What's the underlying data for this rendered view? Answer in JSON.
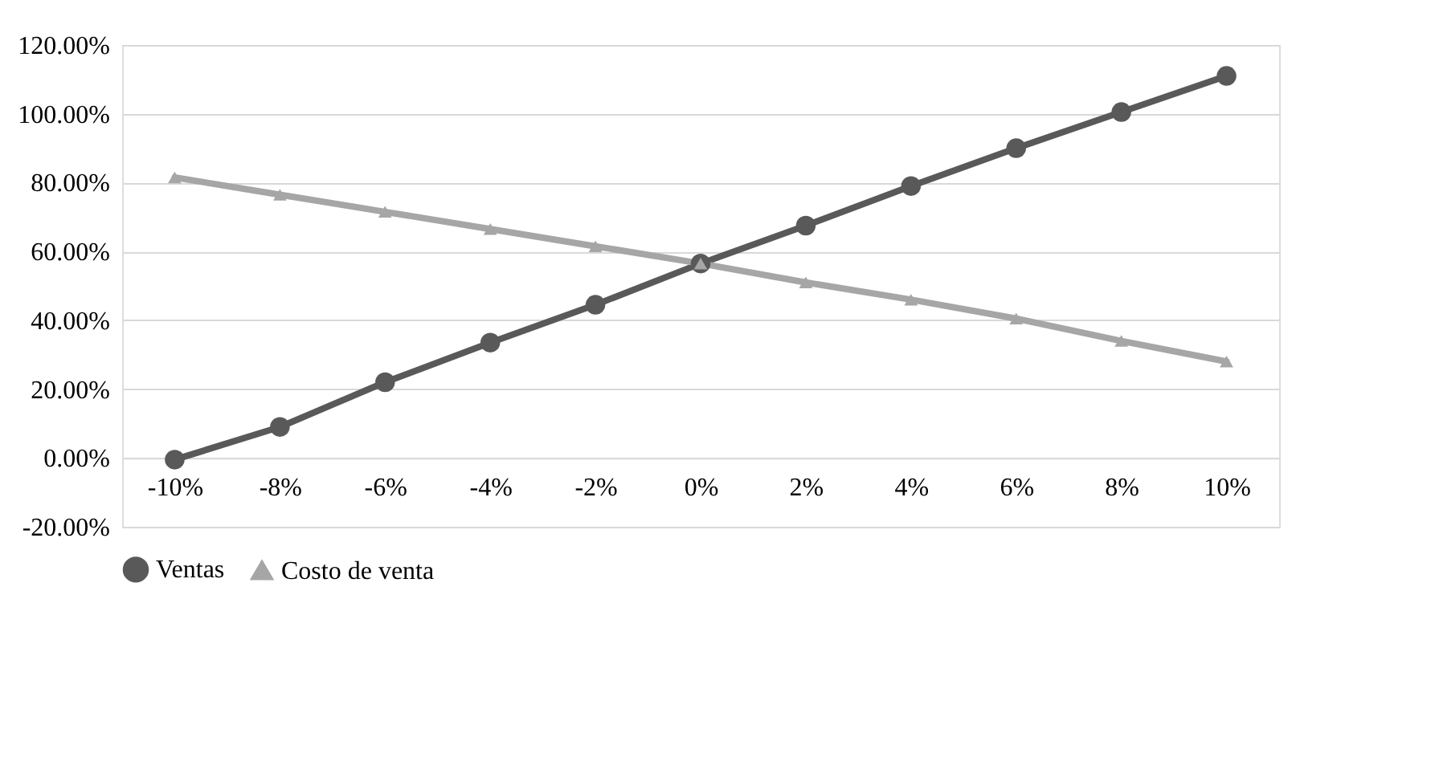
{
  "chart_data": {
    "type": "line",
    "categories": [
      "-10%",
      "-8%",
      "-6%",
      "-4%",
      "-2%",
      "0%",
      "2%",
      "4%",
      "6%",
      "8%",
      "10%"
    ],
    "series": [
      {
        "name": "Ventas",
        "color": "#595959",
        "marker": "circle",
        "values": [
          -0.5,
          9,
          22,
          33.5,
          44.5,
          56.5,
          67.5,
          79,
          90,
          100.5,
          111
        ]
      },
      {
        "name": "Costo de venta",
        "color": "#a6a6a6",
        "marker": "triangle",
        "values": [
          81.5,
          76.5,
          71.5,
          66.5,
          61.5,
          56.5,
          51,
          46,
          40.5,
          34,
          28
        ]
      }
    ],
    "ylim": [
      -20,
      120
    ],
    "yticks": [
      {
        "value": -20,
        "label": "-20.00%"
      },
      {
        "value": 0,
        "label": "0.00%"
      },
      {
        "value": 20,
        "label": "20.00%"
      },
      {
        "value": 40,
        "label": "40.00%"
      },
      {
        "value": 60,
        "label": "60.00%"
      },
      {
        "value": 80,
        "label": "80.00%"
      },
      {
        "value": 100,
        "label": "100.00%"
      },
      {
        "value": 120,
        "label": "120.00%"
      }
    ],
    "grid": "y",
    "legend": "bottom",
    "line_style": "solid"
  }
}
